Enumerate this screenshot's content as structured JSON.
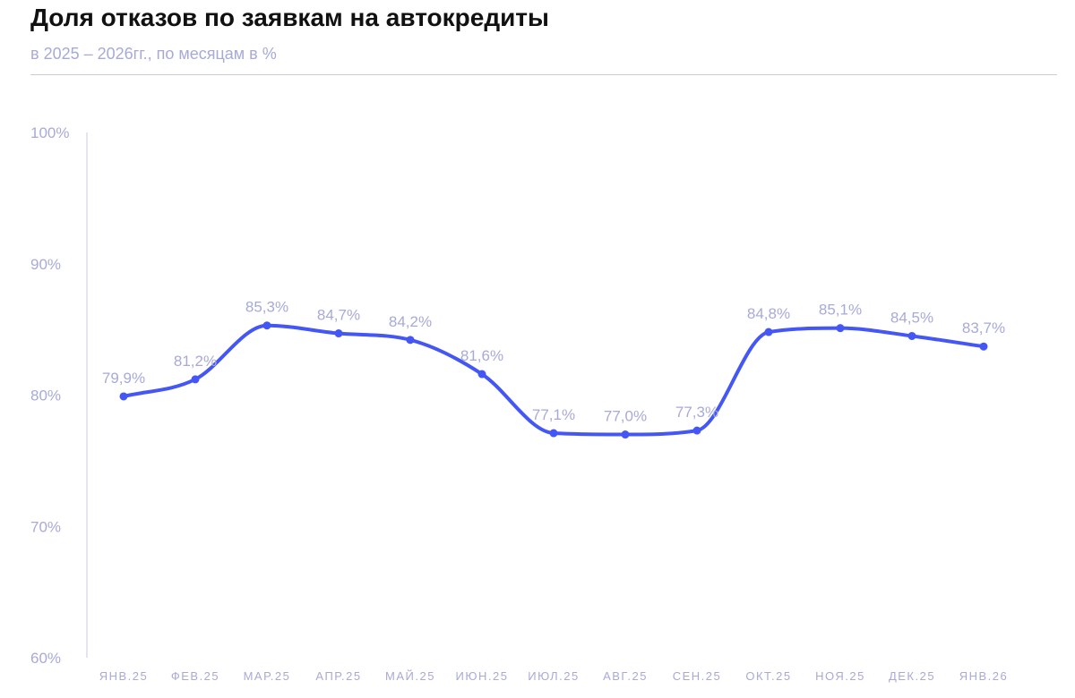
{
  "title": "Доля отказов по заявкам на автокредиты",
  "subtitle": "в 2025 – 2026гг., по месяцам в %",
  "colors": {
    "line": "#4457f5",
    "axis": "#a7aad8",
    "title": "#111111"
  },
  "chart_data": {
    "type": "line",
    "title": "Доля отказов по заявкам на автокредиты",
    "subtitle": "в 2025 – 2026гг., по месяцам в %",
    "categories": [
      "ЯНВ.25",
      "ФЕВ.25",
      "МАР.25",
      "АПР.25",
      "МАЙ.25",
      "ИЮН.25",
      "ИЮЛ.25",
      "АВГ.25",
      "СЕН.25",
      "ОКТ.25",
      "НОЯ.25",
      "ДЕК.25",
      "ЯНВ.26"
    ],
    "values": [
      79.9,
      81.2,
      85.3,
      84.7,
      84.2,
      81.6,
      77.1,
      77.0,
      77.3,
      84.8,
      85.1,
      84.5,
      83.7
    ],
    "data_labels": [
      "79,9%",
      "81,2%",
      "85,3%",
      "84,7%",
      "84,2%",
      "81,6%",
      "77,1%",
      "77,0%",
      "77,3%",
      "84,8%",
      "85,1%",
      "84,5%",
      "83,7%"
    ],
    "ylim": [
      60,
      100
    ],
    "yticks": [
      60,
      70,
      80,
      90,
      100
    ],
    "ytick_labels": [
      "60%",
      "70%",
      "80%",
      "90%",
      "100%"
    ],
    "grid": false,
    "legend": "none",
    "smooth": true
  }
}
